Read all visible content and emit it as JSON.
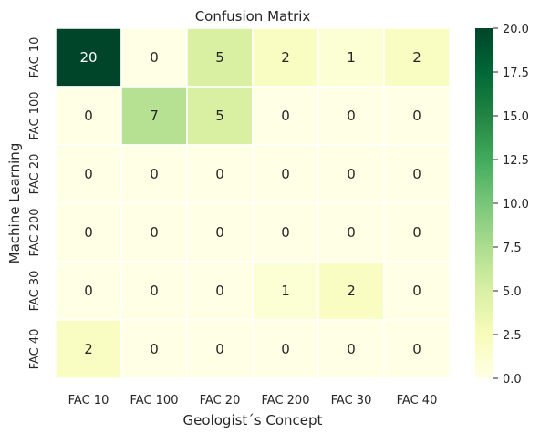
{
  "chart_data": {
    "type": "heatmap",
    "title": "Confusion Matrix",
    "xlabel": "Geologist´s Concept",
    "ylabel": "Machine Learning",
    "x_categories": [
      "FAC 10",
      "FAC 100",
      "FAC 20",
      "FAC 200",
      "FAC 30",
      "FAC 40"
    ],
    "y_categories": [
      "FAC 10",
      "FAC 100",
      "FAC 20",
      "FAC 200",
      "FAC 30",
      "FAC 40"
    ],
    "values": [
      [
        20,
        0,
        5,
        2,
        1,
        2
      ],
      [
        0,
        7,
        5,
        0,
        0,
        0
      ],
      [
        0,
        0,
        0,
        0,
        0,
        0
      ],
      [
        0,
        0,
        0,
        0,
        0,
        0
      ],
      [
        0,
        0,
        0,
        1,
        2,
        0
      ],
      [
        2,
        0,
        0,
        0,
        0,
        0
      ]
    ],
    "colorbar": {
      "colormap": "YlGn",
      "range": [
        0,
        20
      ],
      "ticks": [
        "0.0",
        "2.5",
        "5.0",
        "7.5",
        "10.0",
        "12.5",
        "15.0",
        "17.5",
        "20.0"
      ]
    }
  }
}
